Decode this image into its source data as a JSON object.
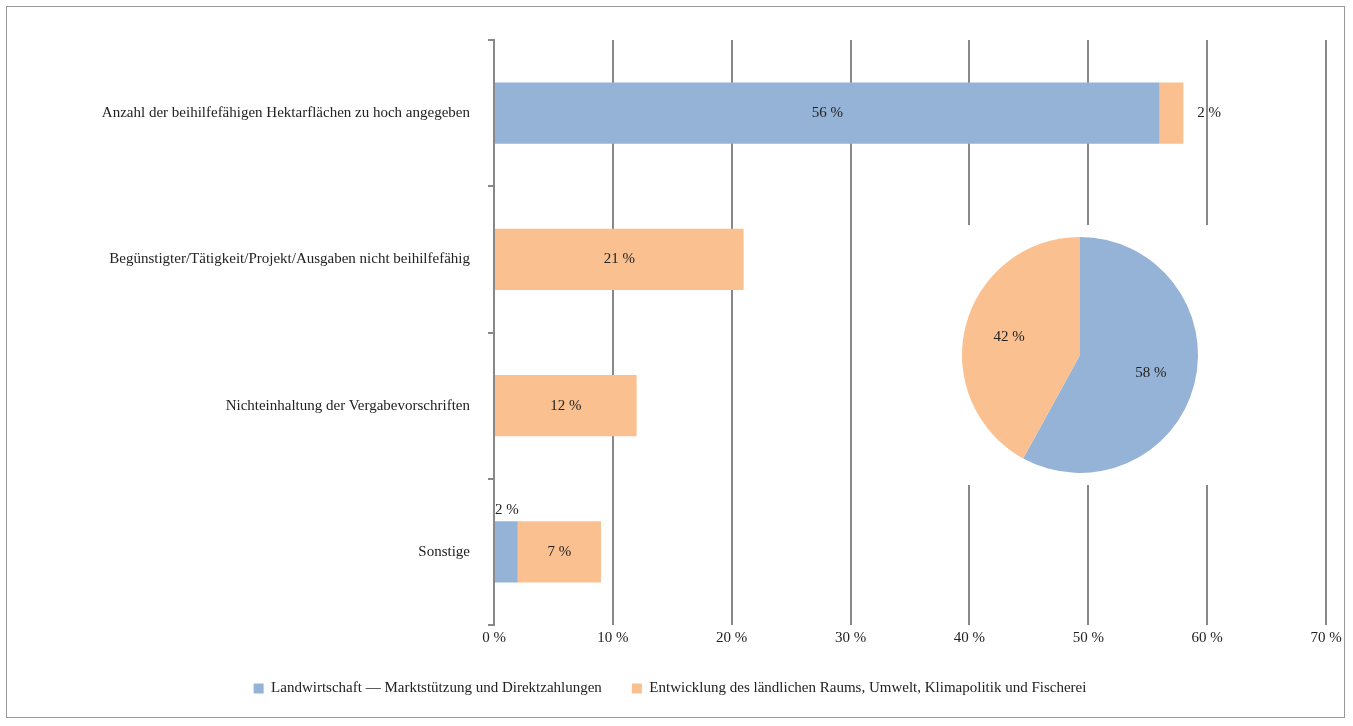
{
  "chart_data": [
    {
      "type": "bar",
      "orientation": "horizontal",
      "stacked": true,
      "categories": [
        "Anzahl der beihilfefähigen Hektarflächen zu hoch angegeben",
        "Begünstigter/Tätigkeit/Projekt/Ausgaben nicht beihilfefähig",
        "Nichteinhaltung der Vergabevorschriften",
        "Sonstige"
      ],
      "series": [
        {
          "name": "Landwirtschaft — Marktstützung und Direktzahlungen",
          "color": "#95b3d7",
          "values": [
            56,
            null,
            null,
            2
          ],
          "value_labels": [
            "56 %",
            null,
            null,
            "2 %"
          ]
        },
        {
          "name": "Entwicklung des ländlichen Raums, Umwelt, Klimapolitik und Fischerei",
          "color": "#fac090",
          "values": [
            2,
            21,
            12,
            7
          ],
          "value_labels": [
            "2 %",
            "21 %",
            "12 %",
            "7 %"
          ]
        }
      ],
      "xlim": [
        0,
        70
      ],
      "xticks": [
        {
          "value": 0,
          "label": "0 %"
        },
        {
          "value": 10,
          "label": "10 %"
        },
        {
          "value": 20,
          "label": "20 %"
        },
        {
          "value": 30,
          "label": "30 %"
        },
        {
          "value": 40,
          "label": "40 %"
        },
        {
          "value": 50,
          "label": "50 %"
        },
        {
          "value": 60,
          "label": "60 %"
        },
        {
          "value": 70,
          "label": "70 %"
        }
      ],
      "grid": "x",
      "legend": "bottom"
    },
    {
      "type": "pie",
      "categories": [
        null,
        null
      ],
      "values": [
        58,
        42
      ],
      "colors": [
        "#95b3d7",
        "#fac090"
      ],
      "value_labels": [
        "58 %",
        "42 %"
      ]
    }
  ]
}
